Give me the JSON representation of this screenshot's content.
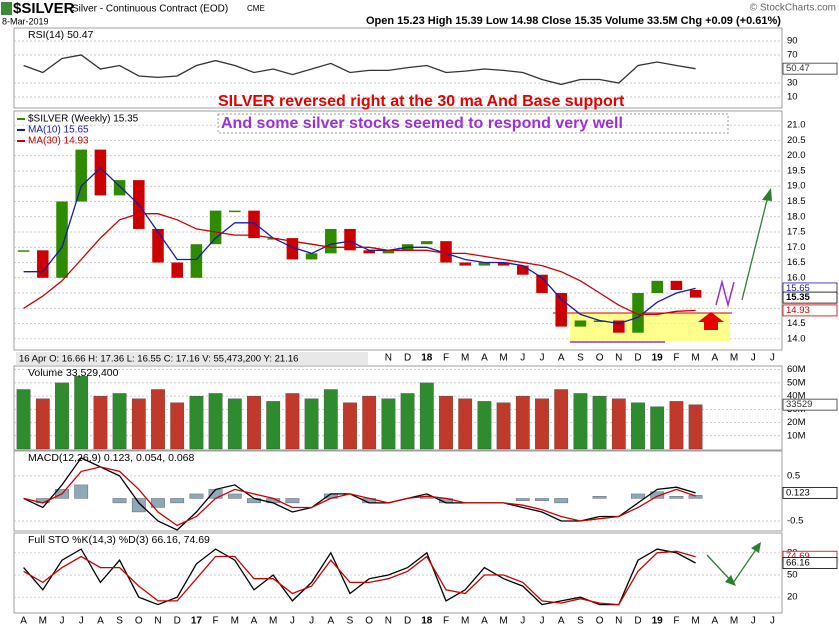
{
  "header": {
    "symbol": "$SILVER",
    "name": "Silver - Continuous Contract (EOD)",
    "exchange": "CME",
    "date": "8-Mar-2019",
    "quote": "Open 15.23 High 15.39 Low 14.98 Close 15.35 Volume 33.5M Chg +0.09 (+0.61%)",
    "credit": "© StockCharts.com",
    "info": "16 Apr O: 16.66 H: 17.36 L: 16.55 C: 17.16 V: 55,473,200 Y: 21.16"
  },
  "chart_data": [
    {
      "type": "line",
      "title": "RSI(14) 50.47",
      "ylim": [
        0,
        100
      ],
      "yticks": [
        10,
        30,
        70,
        90
      ],
      "grid": true,
      "series": [
        {
          "kind": "line",
          "color": "#333333",
          "values": [
            55,
            45,
            65,
            70,
            50,
            55,
            40,
            38,
            40,
            55,
            62,
            55,
            45,
            50,
            42,
            50,
            58,
            45,
            48,
            48,
            52,
            55,
            45,
            47,
            50,
            48,
            45,
            35,
            28,
            35,
            35,
            30,
            55,
            60,
            55,
            50.47,
            null,
            null,
            null,
            null
          ]
        }
      ],
      "badges": [
        {
          "value": 50.47,
          "label": "50.47",
          "color": "#333333"
        }
      ]
    },
    {
      "type": "candlestick",
      "ylim": [
        13.6,
        21.4
      ],
      "categories": [
        "A",
        "M",
        "J",
        "J",
        "A",
        "S",
        "O",
        "N",
        "D",
        "17",
        "F",
        "M",
        "A",
        "M",
        "J",
        "J",
        "A",
        "S",
        "O",
        "N",
        "D",
        "18",
        "F",
        "M",
        "A",
        "M",
        "J",
        "J",
        "A",
        "S",
        "O",
        "N",
        "D",
        "19",
        "F",
        "M",
        "A",
        "M",
        "J",
        "J"
      ],
      "yticks": [
        {
          "value": 14,
          "label": "14.0"
        },
        {
          "value": 14.5,
          "label": "14.5"
        },
        {
          "value": 15,
          "label": "15.0"
        },
        {
          "value": 15.5,
          "label": "15.5"
        },
        {
          "value": 16,
          "label": "16.0"
        },
        {
          "value": 16.5,
          "label": "16.5"
        },
        {
          "value": 17,
          "label": "17.0"
        },
        {
          "value": 17.5,
          "label": "17.5"
        },
        {
          "value": 18,
          "label": "18.0"
        },
        {
          "value": 18.5,
          "label": "18.5"
        },
        {
          "value": 19,
          "label": "19.0"
        },
        {
          "value": 19.5,
          "label": "19.5"
        },
        {
          "value": 20,
          "label": "20.0"
        },
        {
          "value": 20.5,
          "label": "20.5"
        },
        {
          "value": 21,
          "label": "21.0"
        }
      ],
      "grid": true,
      "series": [
        {
          "name": "$SILVER (Weekly) 15.35",
          "kind": "candle",
          "color": "#2e8b00",
          "down_color": "#cc0000",
          "values": [
            16.9,
            16.0,
            18.5,
            20.2,
            18.7,
            19.2,
            17.6,
            16.5,
            16.0,
            17.1,
            18.2,
            18.2,
            17.3,
            17.3,
            16.6,
            16.8,
            17.6,
            16.9,
            16.8,
            16.9,
            17.1,
            17.2,
            16.5,
            16.4,
            16.5,
            16.4,
            16.1,
            15.5,
            14.4,
            14.6,
            14.6,
            14.2,
            15.5,
            15.9,
            15.6,
            15.35,
            null,
            null,
            null,
            null
          ]
        },
        {
          "name": "MA(10) 15.65",
          "kind": "line",
          "color": "#1a1aa6",
          "values": [
            16.2,
            16.2,
            17.0,
            19.0,
            19.6,
            19.0,
            18.4,
            17.5,
            16.6,
            16.6,
            17.3,
            17.8,
            17.8,
            17.3,
            17.0,
            16.8,
            17.1,
            17.2,
            16.9,
            16.9,
            17.0,
            17.0,
            16.8,
            16.6,
            16.5,
            16.5,
            16.4,
            16.0,
            15.3,
            14.8,
            14.6,
            14.5,
            14.7,
            15.2,
            15.5,
            15.65,
            null,
            null,
            null,
            null
          ]
        },
        {
          "name": "MA(30) 14.93",
          "kind": "line",
          "color": "#cc0000",
          "values": [
            15.0,
            15.4,
            15.9,
            16.6,
            17.3,
            17.9,
            18.1,
            18.1,
            17.9,
            17.6,
            17.5,
            17.4,
            17.4,
            17.3,
            17.2,
            17.1,
            17.0,
            17.0,
            17.0,
            16.9,
            16.9,
            16.9,
            16.8,
            16.8,
            16.7,
            16.6,
            16.5,
            16.4,
            16.2,
            15.9,
            15.5,
            15.1,
            14.8,
            14.8,
            14.9,
            14.93,
            null,
            null,
            null,
            null
          ]
        }
      ],
      "badges": [
        {
          "value": 15.65,
          "label": "15.65",
          "color": "#1a1aa6"
        },
        {
          "value": 15.35,
          "label": "15.35",
          "color": "#000000"
        },
        {
          "value": 14.93,
          "label": "14.93",
          "color": "#cc0000"
        }
      ],
      "annotations": [
        {
          "text": "SILVER reversed right at the 30 ma And Base support",
          "color": "#e60000"
        },
        {
          "text": "And some silver stocks seemed to respond very well",
          "color": "#9b30d9"
        }
      ]
    },
    {
      "type": "bar",
      "title": "Volume 33,529,400",
      "ylim": [
        0,
        62
      ],
      "yticks": [
        {
          "value": 10,
          "label": "10M"
        },
        {
          "value": 20,
          "label": "20M"
        },
        {
          "value": 30,
          "label": "30M"
        },
        {
          "value": 40,
          "label": "40M"
        },
        {
          "value": 50,
          "label": "50M"
        },
        {
          "value": 60,
          "label": "60M"
        }
      ],
      "grid": true,
      "series": [
        {
          "kind": "bar",
          "color": "#2e8b2e",
          "down_color": "#c0392b",
          "values": [
            45,
            38,
            50,
            55,
            40,
            42,
            38,
            45,
            35,
            40,
            42,
            38,
            40,
            36,
            42,
            38,
            45,
            35,
            40,
            38,
            42,
            50,
            40,
            38,
            36,
            35,
            40,
            38,
            45,
            42,
            40,
            38,
            35,
            32,
            36,
            33.5294,
            null,
            null,
            null,
            null
          ]
        }
      ],
      "badges": [
        {
          "value": 33.5294,
          "label": "33529",
          "color": "#333333"
        }
      ]
    },
    {
      "type": "line",
      "title": "MACD(12,26,9) 0.123, 0.054, 0.068",
      "ylim": [
        -0.7,
        1.03
      ],
      "yticks": [
        -0.5,
        0.5
      ],
      "grid": true,
      "series": [
        {
          "kind": "bar",
          "color": "#8fa8b8",
          "values": [
            0,
            -0.1,
            0.2,
            0.3,
            0,
            -0.1,
            -0.3,
            -0.2,
            -0.1,
            0.1,
            0.2,
            0.1,
            -0.1,
            -0.1,
            -0.1,
            0,
            0.1,
            0,
            -0.1,
            0,
            0,
            0.05,
            -0.1,
            0,
            0,
            0,
            -0.05,
            -0.05,
            -0.1,
            0,
            0.05,
            0,
            0.1,
            0.15,
            0.05,
            0.068,
            null,
            null,
            null,
            null
          ]
        },
        {
          "kind": "line",
          "color": "#000000",
          "values": [
            0.0,
            -0.2,
            0.3,
            0.9,
            0.7,
            0.5,
            -0.1,
            -0.5,
            -0.7,
            -0.3,
            0.2,
            0.3,
            0.0,
            -0.1,
            -0.3,
            -0.2,
            0.1,
            0.1,
            -0.1,
            -0.1,
            0.0,
            0.1,
            -0.1,
            -0.1,
            -0.1,
            -0.1,
            -0.2,
            -0.3,
            -0.5,
            -0.5,
            -0.4,
            -0.4,
            -0.1,
            0.2,
            0.25,
            0.123,
            null,
            null,
            null,
            null
          ]
        },
        {
          "kind": "line",
          "color": "#cc0000",
          "values": [
            0.0,
            -0.1,
            0.1,
            0.6,
            0.7,
            0.6,
            0.2,
            -0.3,
            -0.6,
            -0.4,
            0.0,
            0.2,
            0.1,
            0.0,
            -0.2,
            -0.2,
            0.0,
            0.1,
            0.0,
            -0.1,
            0.0,
            0.05,
            0.0,
            -0.1,
            -0.1,
            -0.1,
            -0.15,
            -0.25,
            -0.4,
            -0.5,
            -0.45,
            -0.4,
            -0.2,
            0.05,
            0.2,
            0.054,
            null,
            null,
            null,
            null
          ]
        }
      ],
      "badges": [
        {
          "value": 0.123,
          "label": "0.123",
          "color": "#000000"
        }
      ]
    },
    {
      "type": "line",
      "title": "Full STO %K(14,3) %D(3) 66.16, 74.69",
      "ylim": [
        0,
        100
      ],
      "yticks": [
        20,
        50,
        80
      ],
      "grid": true,
      "series": [
        {
          "kind": "line",
          "color": "#000000",
          "values": [
            60,
            30,
            70,
            85,
            40,
            70,
            20,
            10,
            20,
            65,
            85,
            70,
            30,
            50,
            15,
            40,
            80,
            25,
            45,
            50,
            60,
            80,
            15,
            30,
            60,
            45,
            35,
            10,
            15,
            20,
            10,
            10,
            70,
            85,
            80,
            66.16,
            null,
            null,
            null,
            null
          ]
        },
        {
          "kind": "line",
          "color": "#cc0000",
          "values": [
            55,
            40,
            60,
            75,
            60,
            60,
            35,
            15,
            15,
            45,
            75,
            75,
            45,
            45,
            25,
            35,
            70,
            40,
            40,
            45,
            55,
            75,
            30,
            25,
            50,
            50,
            40,
            15,
            12,
            18,
            12,
            10,
            55,
            80,
            82,
            74.69,
            null,
            null,
            null,
            null
          ]
        }
      ],
      "badges": [
        {
          "value": 74.69,
          "label": "74.69",
          "color": "#cc0000"
        },
        {
          "value": 66.16,
          "label": "66.16",
          "color": "#000000"
        }
      ]
    }
  ]
}
